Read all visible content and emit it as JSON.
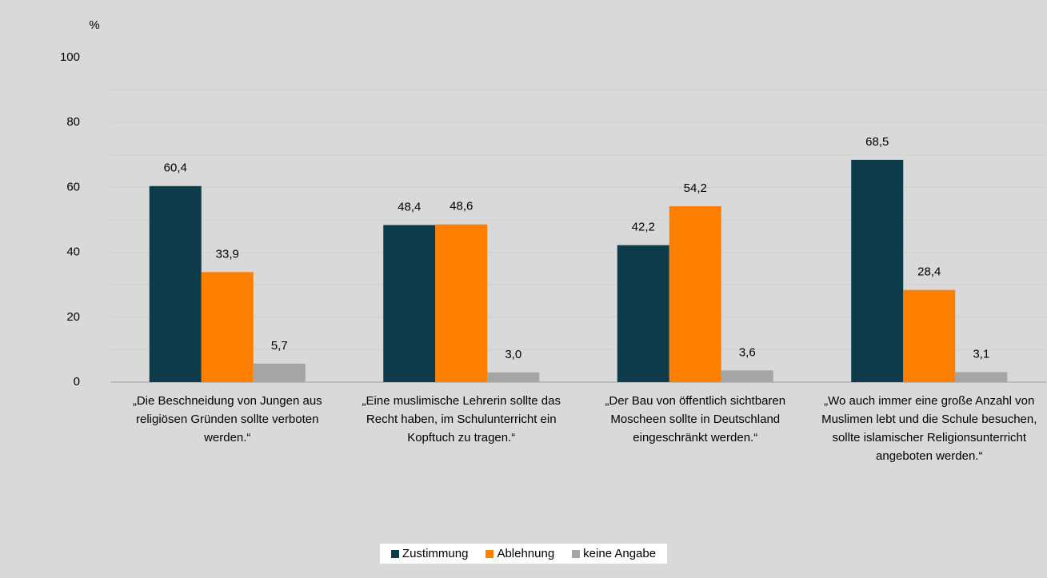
{
  "chart_data": {
    "type": "bar",
    "y_label": "%",
    "categories": [
      "„Die Beschneidung von Jungen aus religiösen Gründen sollte verboten werden.“",
      "„Eine muslimische Lehrerin sollte das Recht haben, im Schulunterricht ein Kopftuch zu tragen.“",
      "„Der Bau von öffentlich sichtbaren Moscheen sollte in Deutschland eingeschränkt werden.“",
      "„Wo auch immer eine große Anzahl von Muslimen lebt und die Schule besuchen, sollte islamischer Religionsunterricht angeboten werden.“"
    ],
    "series": [
      {
        "name": "Zustimmung",
        "color": "#0d3b4a",
        "values": [
          60.4,
          48.4,
          42.2,
          68.5
        ],
        "value_labels": [
          "60,4",
          "48,4",
          "42,2",
          "68,5"
        ]
      },
      {
        "name": "Ablehnung",
        "color": "#ff7f00",
        "values": [
          33.9,
          48.6,
          54.2,
          28.4
        ],
        "value_labels": [
          "33,9",
          "48,6",
          "54,2",
          "28,4"
        ]
      },
      {
        "name": "keine Angabe",
        "color": "#a5a5a5",
        "values": [
          5.7,
          3.0,
          3.6,
          3.1
        ],
        "value_labels": [
          "5,7",
          "3,0",
          "3,6",
          "3,1"
        ]
      }
    ],
    "ylim": [
      0,
      100
    ],
    "yticks": [
      0,
      20,
      40,
      60,
      80,
      100
    ],
    "minor_yticks": [
      10,
      30,
      50,
      70,
      90
    ],
    "grid": true,
    "legend": "bottom"
  }
}
